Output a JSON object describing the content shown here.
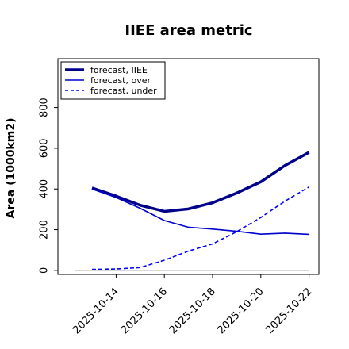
{
  "chart_data": {
    "type": "line",
    "title": "IIEE area metric",
    "xlabel": "",
    "ylabel": "Area (1000km2)",
    "x": [
      "2025-10-13",
      "2025-10-14",
      "2025-10-15",
      "2025-10-16",
      "2025-10-17",
      "2025-10-18",
      "2025-10-19",
      "2025-10-20",
      "2025-10-21",
      "2025-10-22"
    ],
    "xticks": [
      "2025-10-14",
      "2025-10-16",
      "2025-10-18",
      "2025-10-20",
      "2025-10-22"
    ],
    "xtick_colors": [
      "#2e8b2e",
      "#000000",
      "#000000",
      "#000000",
      "#000000"
    ],
    "yticks": [
      0,
      200,
      400,
      600,
      800
    ],
    "ylim": [
      -20,
      1040
    ],
    "grid": false,
    "legend_position": "top-left",
    "zero_line": 0,
    "series": [
      {
        "name": "forecast, IIEE",
        "color": "#00008b",
        "style": "solid-thick",
        "values": [
          405,
          365,
          320,
          290,
          302,
          332,
          380,
          435,
          515,
          580
        ]
      },
      {
        "name": "forecast, over",
        "color": "#0000cd",
        "style": "solid",
        "values": [
          400,
          358,
          305,
          245,
          212,
          203,
          192,
          178,
          183,
          177
        ]
      },
      {
        "name": "forecast, under",
        "color": "#0000ff",
        "style": "dashed",
        "values": [
          5,
          7,
          14,
          50,
          95,
          130,
          190,
          260,
          340,
          410
        ]
      }
    ]
  }
}
